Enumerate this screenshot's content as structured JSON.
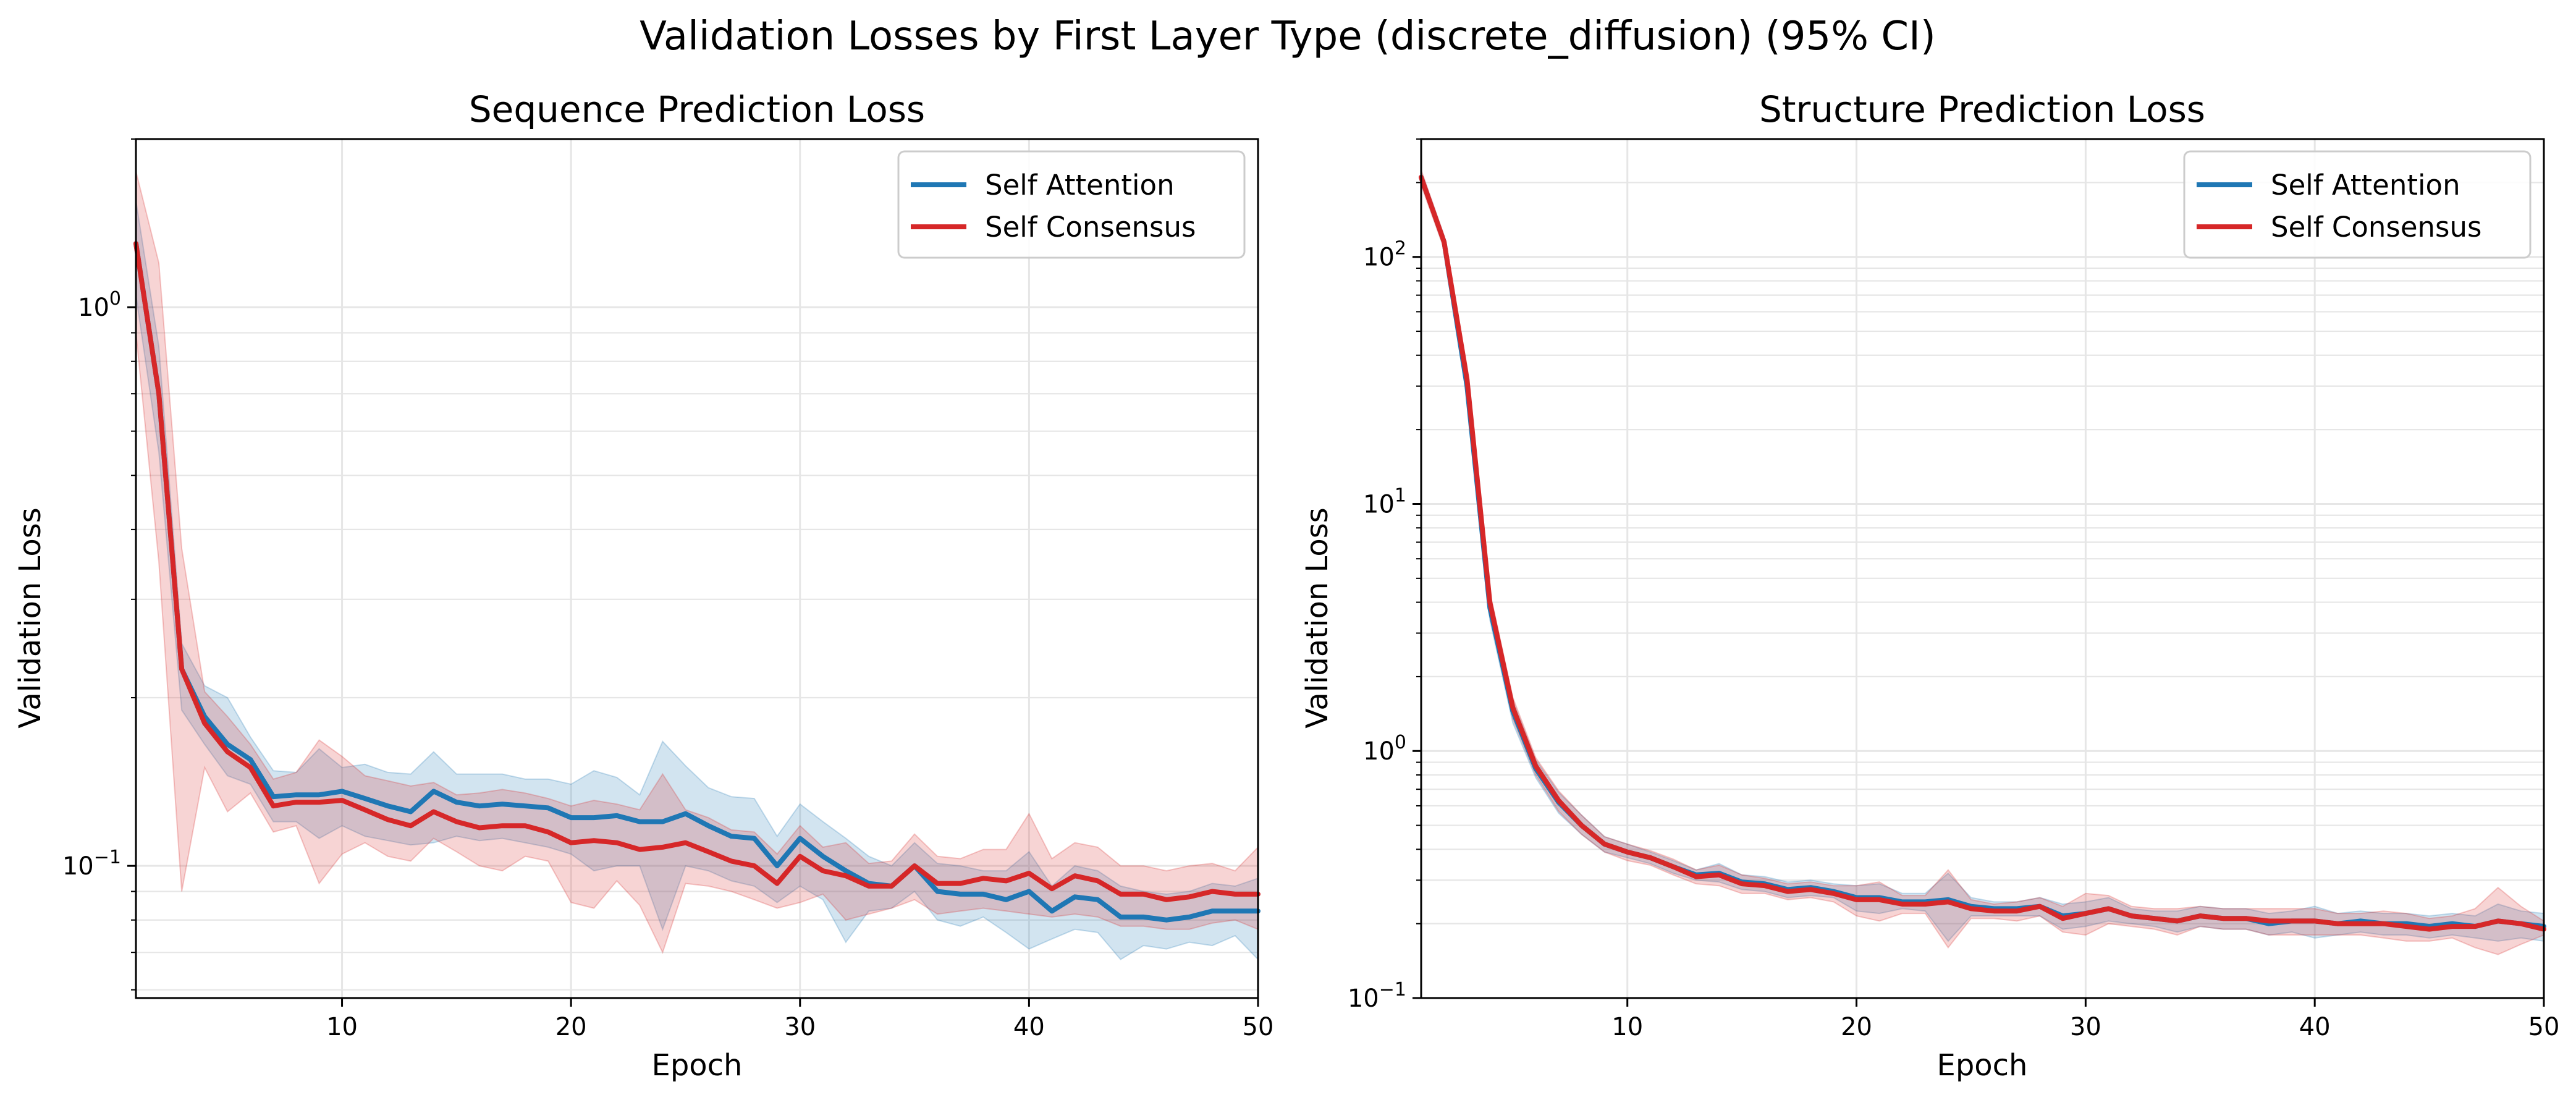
{
  "suptitle": "Validation Losses by First Layer Type (discrete_diffusion) (95% CI)",
  "colors": {
    "self_attention": "#1f77b4",
    "self_consensus": "#d62728"
  },
  "chart_data": [
    {
      "type": "line",
      "title": "Sequence Prediction Loss",
      "xlabel": "Epoch",
      "ylabel": "Validation Loss",
      "yscale": "log",
      "xlim": [
        1,
        50
      ],
      "ylim": [
        0.058,
        2.0
      ],
      "grid": true,
      "legend_position": "top-right",
      "x_ticks": [
        10,
        20,
        30,
        40,
        50
      ],
      "y_ticks": [
        {
          "value": 1,
          "label": "10^0"
        },
        {
          "value": 0.1,
          "label": "10^−1"
        }
      ],
      "x": [
        1,
        2,
        3,
        4,
        5,
        6,
        7,
        8,
        9,
        10,
        11,
        12,
        13,
        14,
        15,
        16,
        17,
        18,
        19,
        20,
        21,
        22,
        23,
        24,
        25,
        26,
        27,
        28,
        29,
        30,
        31,
        32,
        33,
        34,
        35,
        36,
        37,
        38,
        39,
        40,
        41,
        42,
        43,
        44,
        45,
        46,
        47,
        48,
        49,
        50
      ],
      "series": [
        {
          "name": "Self Attention",
          "color": "#1f77b4",
          "values": [
            1.3,
            0.7,
            0.225,
            0.185,
            0.165,
            0.155,
            0.133,
            0.134,
            0.134,
            0.136,
            0.132,
            0.128,
            0.125,
            0.136,
            0.13,
            0.128,
            0.129,
            0.128,
            0.127,
            0.122,
            0.122,
            0.123,
            0.12,
            0.12,
            0.124,
            0.118,
            0.113,
            0.112,
            0.1,
            0.112,
            0.104,
            0.098,
            0.093,
            0.092,
            0.1,
            0.09,
            0.089,
            0.089,
            0.087,
            0.09,
            0.083,
            0.088,
            0.087,
            0.081,
            0.081,
            0.08,
            0.081,
            0.083,
            0.083,
            0.083
          ],
          "ci_lower": [
            1.05,
            0.55,
            0.19,
            0.165,
            0.145,
            0.14,
            0.12,
            0.12,
            0.112,
            0.118,
            0.113,
            0.111,
            0.109,
            0.11,
            0.113,
            0.111,
            0.112,
            0.11,
            0.108,
            0.105,
            0.098,
            0.1,
            0.1,
            0.077,
            0.1,
            0.098,
            0.094,
            0.092,
            0.086,
            0.092,
            0.087,
            0.073,
            0.083,
            0.084,
            0.09,
            0.08,
            0.078,
            0.081,
            0.076,
            0.071,
            0.074,
            0.077,
            0.076,
            0.068,
            0.072,
            0.071,
            0.073,
            0.072,
            0.075,
            0.068
          ],
          "ci_upper": [
            1.55,
            0.85,
            0.25,
            0.21,
            0.2,
            0.17,
            0.148,
            0.147,
            0.162,
            0.15,
            0.152,
            0.147,
            0.146,
            0.16,
            0.146,
            0.146,
            0.146,
            0.143,
            0.143,
            0.14,
            0.148,
            0.144,
            0.134,
            0.167,
            0.151,
            0.138,
            0.133,
            0.132,
            0.113,
            0.129,
            0.12,
            0.112,
            0.104,
            0.1,
            0.11,
            0.101,
            0.1,
            0.098,
            0.098,
            0.106,
            0.092,
            0.1,
            0.098,
            0.092,
            0.09,
            0.089,
            0.09,
            0.093,
            0.092,
            0.095
          ]
        },
        {
          "name": "Self Consensus",
          "color": "#d62728",
          "values": [
            1.3,
            0.7,
            0.225,
            0.18,
            0.16,
            0.15,
            0.128,
            0.13,
            0.13,
            0.131,
            0.126,
            0.121,
            0.118,
            0.125,
            0.12,
            0.117,
            0.118,
            0.118,
            0.115,
            0.11,
            0.111,
            0.11,
            0.107,
            0.108,
            0.11,
            0.106,
            0.102,
            0.1,
            0.093,
            0.104,
            0.098,
            0.096,
            0.092,
            0.092,
            0.1,
            0.093,
            0.093,
            0.095,
            0.094,
            0.097,
            0.091,
            0.096,
            0.094,
            0.089,
            0.089,
            0.087,
            0.088,
            0.09,
            0.089,
            0.089
          ],
          "ci_lower": [
            0.9,
            0.35,
            0.09,
            0.15,
            0.125,
            0.135,
            0.115,
            0.118,
            0.093,
            0.105,
            0.11,
            0.104,
            0.102,
            0.112,
            0.106,
            0.1,
            0.098,
            0.104,
            0.102,
            0.086,
            0.084,
            0.094,
            0.085,
            0.07,
            0.093,
            0.092,
            0.09,
            0.087,
            0.084,
            0.086,
            0.089,
            0.08,
            0.082,
            0.084,
            0.087,
            0.082,
            0.083,
            0.084,
            0.083,
            0.082,
            0.081,
            0.082,
            0.081,
            0.078,
            0.078,
            0.077,
            0.077,
            0.079,
            0.08,
            0.077
          ],
          "ci_upper": [
            1.75,
            1.2,
            0.37,
            0.205,
            0.185,
            0.165,
            0.143,
            0.147,
            0.168,
            0.157,
            0.145,
            0.142,
            0.139,
            0.141,
            0.134,
            0.135,
            0.137,
            0.135,
            0.132,
            0.128,
            0.131,
            0.129,
            0.126,
            0.146,
            0.126,
            0.122,
            0.116,
            0.115,
            0.105,
            0.118,
            0.108,
            0.11,
            0.101,
            0.102,
            0.114,
            0.104,
            0.103,
            0.107,
            0.107,
            0.124,
            0.103,
            0.11,
            0.108,
            0.1,
            0.1,
            0.098,
            0.1,
            0.101,
            0.098,
            0.108
          ]
        }
      ]
    },
    {
      "type": "line",
      "title": "Structure Prediction Loss",
      "xlabel": "Epoch",
      "ylabel": "Validation Loss",
      "yscale": "log",
      "xlim": [
        1,
        50
      ],
      "ylim": [
        0.1,
        300
      ],
      "grid": true,
      "legend_position": "top-right",
      "x_ticks": [
        10,
        20,
        30,
        40,
        50
      ],
      "y_ticks": [
        {
          "value": 100,
          "label": "10^2"
        },
        {
          "value": 10,
          "label": "10^1"
        },
        {
          "value": 1,
          "label": "10^0"
        },
        {
          "value": 0.1,
          "label": "10^−1"
        }
      ],
      "x": [
        1,
        2,
        3,
        4,
        5,
        6,
        7,
        8,
        9,
        10,
        11,
        12,
        13,
        14,
        15,
        16,
        17,
        18,
        19,
        20,
        21,
        22,
        23,
        24,
        25,
        26,
        27,
        28,
        29,
        30,
        31,
        32,
        33,
        34,
        35,
        36,
        37,
        38,
        39,
        40,
        41,
        42,
        43,
        44,
        45,
        46,
        47,
        48,
        49,
        50
      ],
      "series": [
        {
          "name": "Self Attention",
          "color": "#1f77b4",
          "values": [
            210,
            115,
            30,
            3.8,
            1.45,
            0.85,
            0.62,
            0.5,
            0.42,
            0.39,
            0.37,
            0.34,
            0.315,
            0.32,
            0.295,
            0.29,
            0.275,
            0.28,
            0.27,
            0.255,
            0.255,
            0.245,
            0.245,
            0.25,
            0.235,
            0.23,
            0.23,
            0.235,
            0.215,
            0.22,
            0.23,
            0.215,
            0.21,
            0.205,
            0.215,
            0.21,
            0.21,
            0.2,
            0.205,
            0.205,
            0.2,
            0.205,
            0.2,
            0.2,
            0.195,
            0.2,
            0.195,
            0.205,
            0.2,
            0.195
          ],
          "ci_lower": [
            200,
            110,
            27,
            3.4,
            1.3,
            0.78,
            0.56,
            0.46,
            0.39,
            0.37,
            0.35,
            0.32,
            0.3,
            0.295,
            0.275,
            0.27,
            0.255,
            0.26,
            0.255,
            0.225,
            0.22,
            0.23,
            0.225,
            0.17,
            0.215,
            0.215,
            0.215,
            0.215,
            0.19,
            0.195,
            0.205,
            0.2,
            0.195,
            0.185,
            0.195,
            0.19,
            0.19,
            0.18,
            0.185,
            0.175,
            0.18,
            0.185,
            0.18,
            0.18,
            0.175,
            0.18,
            0.175,
            0.17,
            0.175,
            0.17
          ],
          "ci_upper": [
            220,
            120,
            33,
            4.2,
            1.6,
            0.92,
            0.68,
            0.55,
            0.45,
            0.42,
            0.39,
            0.36,
            0.33,
            0.35,
            0.315,
            0.31,
            0.295,
            0.3,
            0.29,
            0.285,
            0.29,
            0.265,
            0.265,
            0.32,
            0.255,
            0.245,
            0.245,
            0.255,
            0.24,
            0.245,
            0.255,
            0.23,
            0.225,
            0.225,
            0.235,
            0.23,
            0.23,
            0.22,
            0.225,
            0.235,
            0.22,
            0.225,
            0.22,
            0.22,
            0.215,
            0.22,
            0.215,
            0.24,
            0.225,
            0.22
          ]
        },
        {
          "name": "Self Consensus",
          "color": "#d62728",
          "values": [
            210,
            115,
            32,
            4,
            1.5,
            0.87,
            0.63,
            0.5,
            0.42,
            0.39,
            0.37,
            0.34,
            0.31,
            0.315,
            0.29,
            0.285,
            0.27,
            0.275,
            0.265,
            0.25,
            0.25,
            0.24,
            0.24,
            0.245,
            0.23,
            0.225,
            0.225,
            0.235,
            0.21,
            0.22,
            0.23,
            0.215,
            0.21,
            0.205,
            0.215,
            0.21,
            0.21,
            0.205,
            0.205,
            0.205,
            0.2,
            0.2,
            0.2,
            0.195,
            0.19,
            0.195,
            0.195,
            0.205,
            0.2,
            0.19
          ],
          "ci_lower": [
            195,
            108,
            28,
            3.6,
            1.35,
            0.8,
            0.57,
            0.46,
            0.39,
            0.36,
            0.345,
            0.315,
            0.29,
            0.285,
            0.265,
            0.265,
            0.25,
            0.255,
            0.245,
            0.215,
            0.205,
            0.22,
            0.22,
            0.16,
            0.21,
            0.21,
            0.205,
            0.215,
            0.185,
            0.18,
            0.2,
            0.195,
            0.19,
            0.18,
            0.195,
            0.19,
            0.19,
            0.18,
            0.18,
            0.18,
            0.18,
            0.18,
            0.175,
            0.17,
            0.17,
            0.175,
            0.16,
            0.15,
            0.165,
            0.18
          ],
          "ci_upper": [
            225,
            122,
            36,
            4.4,
            1.65,
            0.94,
            0.69,
            0.55,
            0.45,
            0.42,
            0.395,
            0.365,
            0.33,
            0.345,
            0.315,
            0.305,
            0.29,
            0.295,
            0.285,
            0.285,
            0.295,
            0.26,
            0.26,
            0.33,
            0.25,
            0.24,
            0.245,
            0.255,
            0.235,
            0.265,
            0.26,
            0.235,
            0.23,
            0.23,
            0.235,
            0.23,
            0.23,
            0.23,
            0.23,
            0.23,
            0.22,
            0.22,
            0.225,
            0.22,
            0.21,
            0.215,
            0.23,
            0.28,
            0.235,
            0.205
          ]
        }
      ]
    }
  ]
}
